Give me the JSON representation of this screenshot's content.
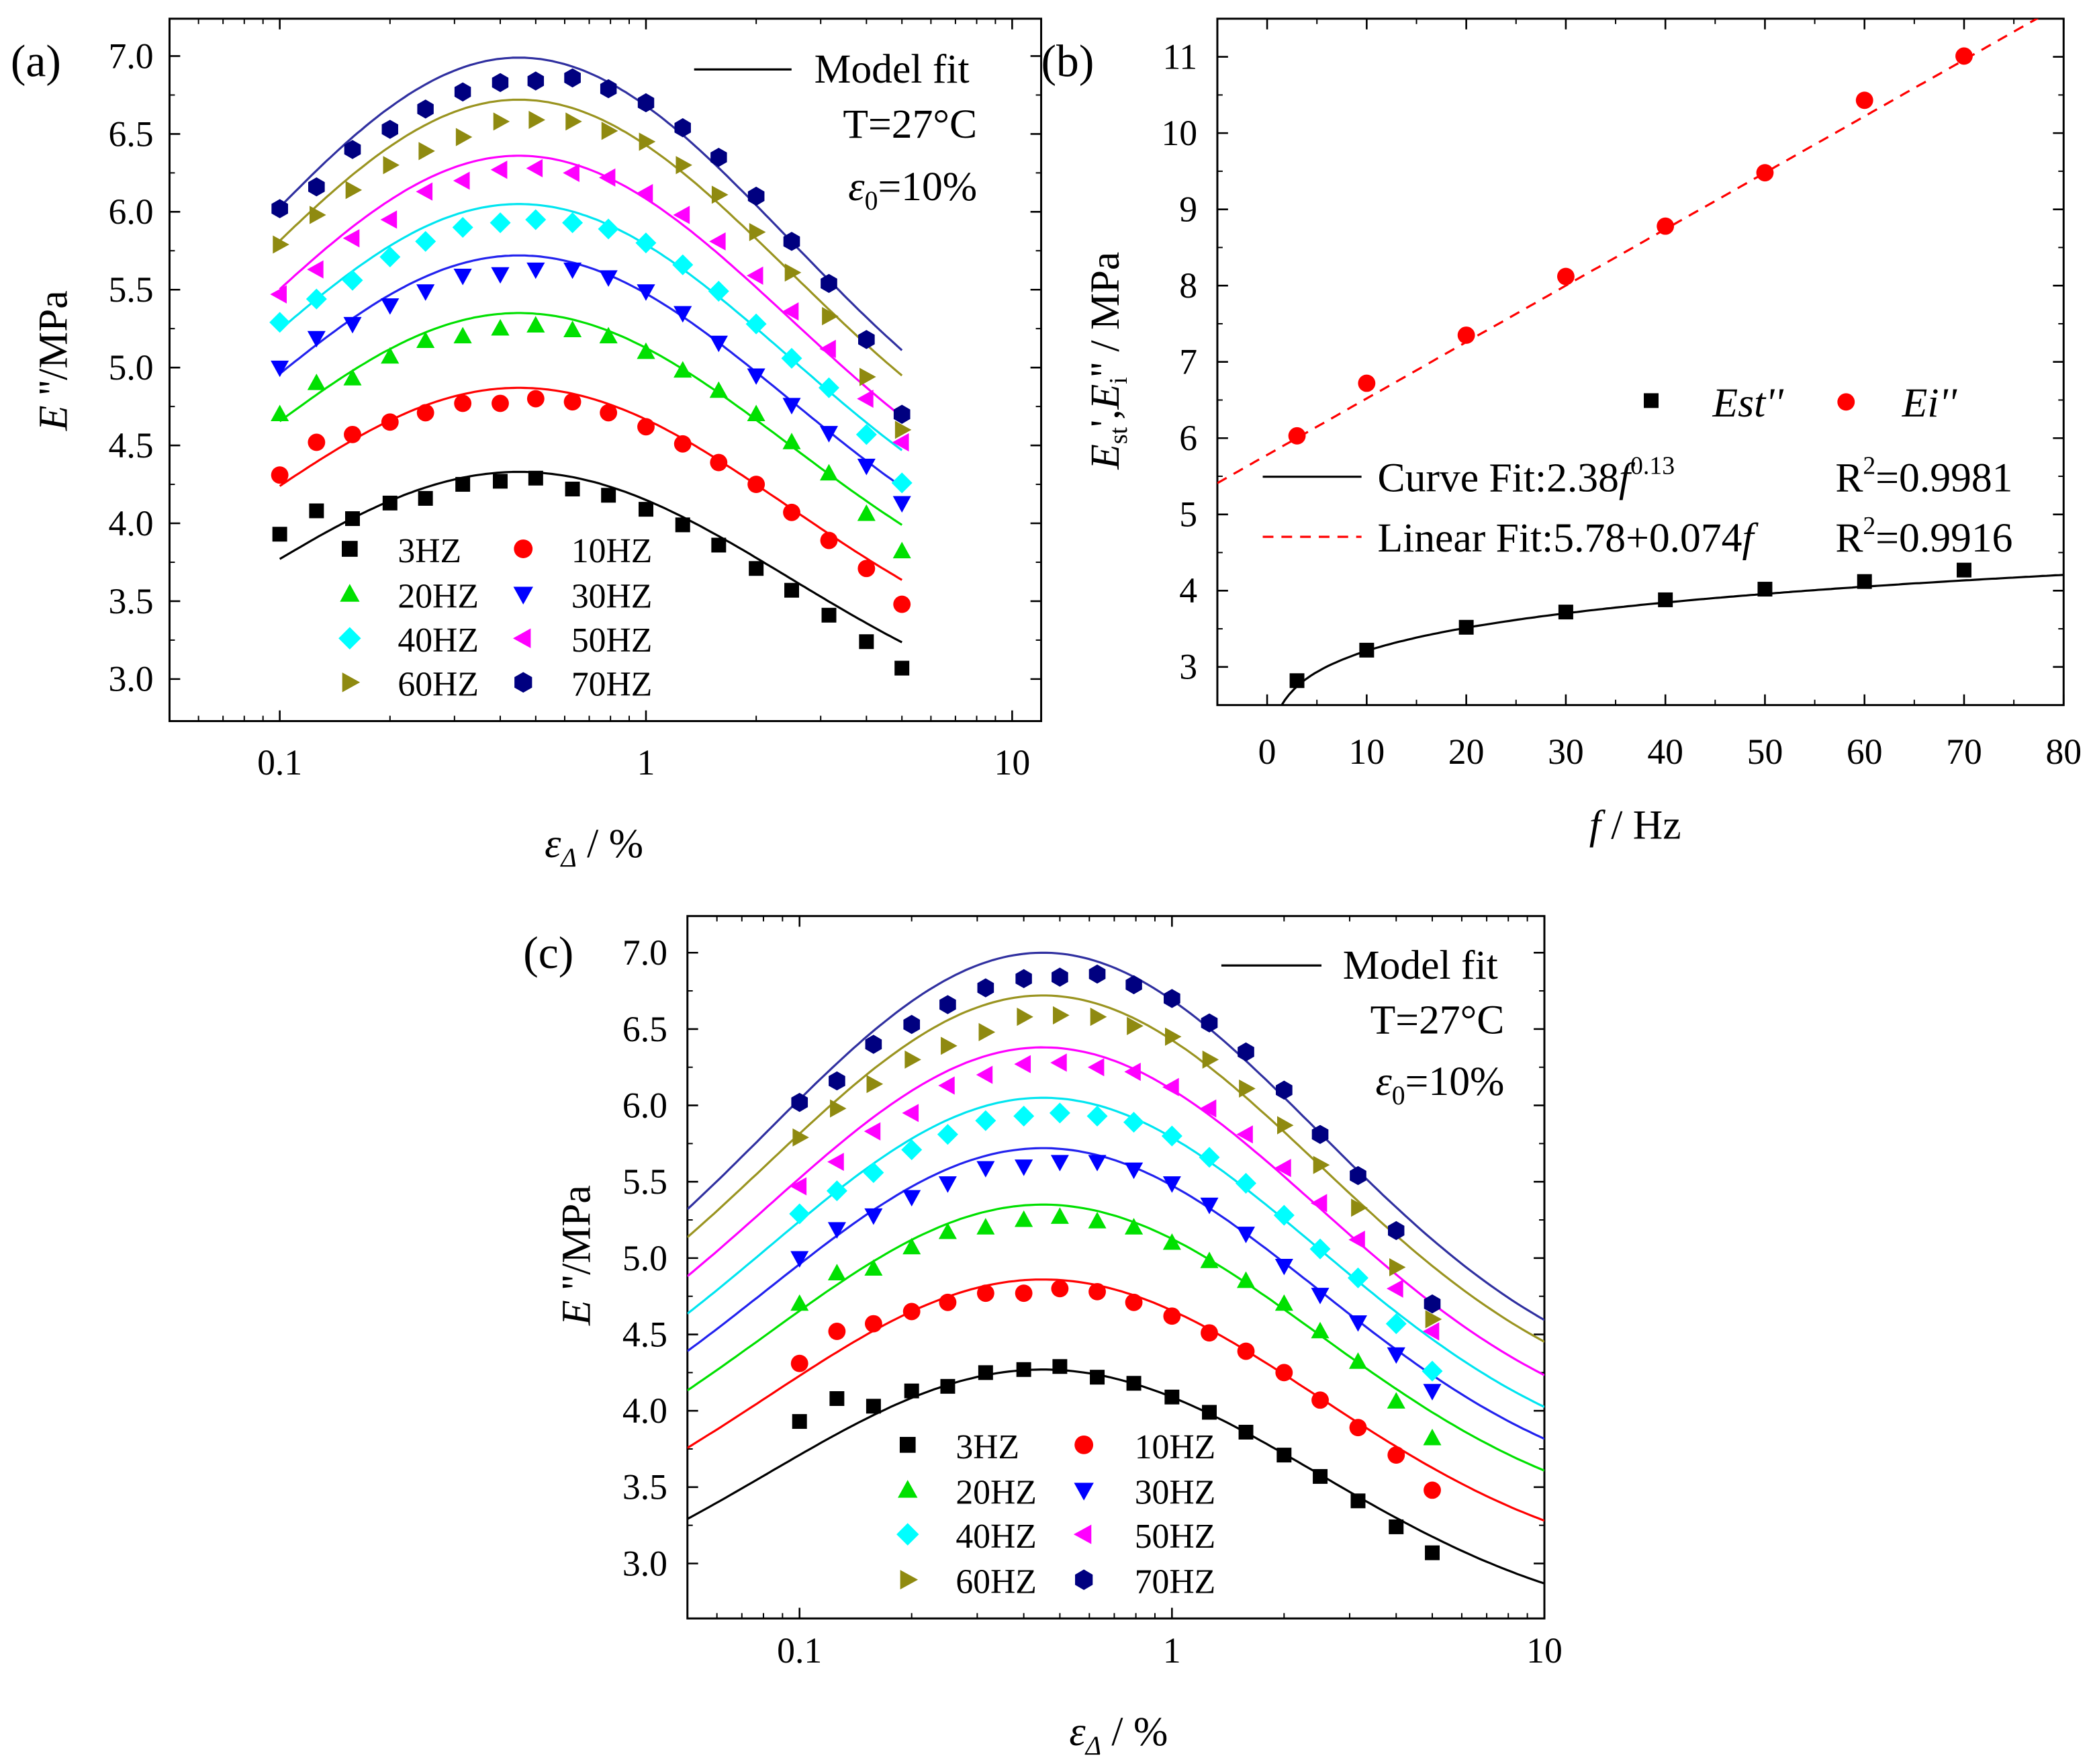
{
  "chart_data": [
    {
      "panel": "(a)",
      "type": "scatter",
      "xscale": "log",
      "xlim": [
        0.05,
        12
      ],
      "ylim": [
        2.73,
        7.24
      ],
      "xticks": [
        0.1,
        1,
        10
      ],
      "xtick_labels": [
        "0.1",
        "1",
        "10"
      ],
      "yticks": [
        3.0,
        3.5,
        4.0,
        4.5,
        5.0,
        5.5,
        6.0,
        6.5,
        7.0
      ],
      "ytick_labels": [
        "3.0",
        "3.5",
        "4.0",
        "4.5",
        "5.0",
        "5.5",
        "6.0",
        "6.5",
        "7.0"
      ],
      "xlabel": {
        "main": "ε",
        "sub": "Δ",
        "rest": " / %"
      },
      "ylabel": {
        "main": "E",
        "rest": " ''/MPa"
      },
      "annotations": {
        "model_fit": "Model fit",
        "temperature": "T=27°C",
        "strain_main": "ε",
        "strain_sub": "0",
        "strain_rest": "=10%"
      },
      "fit": {
        "model": "log-gaussian",
        "center": 0.45,
        "width": 0.739,
        "x_range": [
          0.1,
          5
        ]
      },
      "x": [
        0.1,
        0.126,
        0.158,
        0.2,
        0.25,
        0.316,
        0.4,
        0.5,
        0.63,
        0.79,
        1,
        1.26,
        1.58,
        2,
        2.5,
        3.16,
        4,
        5
      ],
      "series": [
        {
          "name": "3HZ",
          "color": "#000000",
          "line_color": "#000000",
          "marker": "square",
          "fit_peak": 4.33,
          "fit_drop": 1.73,
          "values": [
            3.93,
            4.08,
            4.03,
            4.13,
            4.16,
            4.25,
            4.27,
            4.29,
            4.22,
            4.18,
            4.09,
            3.99,
            3.86,
            3.71,
            3.57,
            3.41,
            3.24,
            3.07
          ]
        },
        {
          "name": "10HZ",
          "color": "#ff0000",
          "line_color": "#ff0000",
          "marker": "circle",
          "fit_peak": 4.87,
          "fit_drop": 1.95,
          "values": [
            4.31,
            4.52,
            4.57,
            4.65,
            4.71,
            4.77,
            4.77,
            4.8,
            4.78,
            4.71,
            4.62,
            4.51,
            4.39,
            4.25,
            4.07,
            3.89,
            3.71,
            3.48
          ]
        },
        {
          "name": "20HZ",
          "color": "#00e000",
          "line_color": "#00e000",
          "marker": "triangle-up",
          "fit_peak": 5.35,
          "fit_drop": 2.15,
          "values": [
            4.7,
            4.9,
            4.93,
            5.07,
            5.17,
            5.2,
            5.25,
            5.27,
            5.24,
            5.2,
            5.1,
            4.98,
            4.85,
            4.7,
            4.52,
            4.32,
            4.06,
            3.82
          ]
        },
        {
          "name": "30HZ",
          "color": "#0000ff",
          "line_color": "#2222ee",
          "marker": "triangle-down",
          "fit_peak": 5.72,
          "fit_drop": 2.35,
          "values": [
            5.0,
            5.19,
            5.28,
            5.4,
            5.49,
            5.59,
            5.6,
            5.63,
            5.63,
            5.58,
            5.49,
            5.35,
            5.16,
            4.95,
            4.76,
            4.58,
            4.37,
            4.13
          ]
        },
        {
          "name": "40HZ",
          "color": "#00ffff",
          "line_color": "#00e5f0",
          "marker": "diamond",
          "fit_peak": 6.05,
          "fit_drop": 2.5,
          "values": [
            5.29,
            5.44,
            5.56,
            5.71,
            5.81,
            5.9,
            5.93,
            5.95,
            5.93,
            5.89,
            5.8,
            5.66,
            5.49,
            5.28,
            5.06,
            4.87,
            4.57,
            4.26
          ]
        },
        {
          "name": "50HZ",
          "color": "#ff00ff",
          "line_color": "#ff00ff",
          "marker": "triangle-left",
          "fit_peak": 6.36,
          "fit_drop": 2.65,
          "values": [
            5.47,
            5.63,
            5.83,
            5.95,
            6.13,
            6.2,
            6.27,
            6.28,
            6.25,
            6.22,
            6.12,
            5.98,
            5.81,
            5.59,
            5.36,
            5.12,
            4.8,
            4.52
          ]
        },
        {
          "name": "60HZ",
          "color": "#8f8a10",
          "line_color": "#9a9420",
          "marker": "triangle-right",
          "fit_peak": 6.72,
          "fit_drop": 2.8,
          "values": [
            5.79,
            5.98,
            6.14,
            6.3,
            6.39,
            6.48,
            6.58,
            6.59,
            6.58,
            6.52,
            6.45,
            6.3,
            6.11,
            5.87,
            5.61,
            5.33,
            4.94,
            4.6
          ]
        },
        {
          "name": "70HZ",
          "color": "#000080",
          "line_color": "#3030a0",
          "marker": "hexagon",
          "fit_peak": 6.99,
          "fit_drop": 2.97,
          "values": [
            6.02,
            6.16,
            6.4,
            6.53,
            6.66,
            6.77,
            6.83,
            6.84,
            6.86,
            6.79,
            6.7,
            6.54,
            6.35,
            6.1,
            5.81,
            5.54,
            5.18,
            4.7
          ]
        }
      ]
    },
    {
      "panel": "(b)",
      "type": "scatter",
      "xlim": [
        -5,
        80
      ],
      "ylim": [
        2.5,
        11.5
      ],
      "xticks": [
        0,
        10,
        20,
        30,
        40,
        50,
        60,
        70,
        80
      ],
      "xtick_labels": [
        "0",
        "10",
        "20",
        "30",
        "40",
        "50",
        "60",
        "70",
        "80"
      ],
      "yticks": [
        3,
        4,
        5,
        6,
        7,
        8,
        9,
        10,
        11
      ],
      "ytick_labels": [
        "3",
        "4",
        "5",
        "6",
        "7",
        "8",
        "9",
        "10",
        "11"
      ],
      "xlabel": {
        "main": "f",
        "rest": " / Hz"
      },
      "ylabel": {
        "e1": "E",
        "s1": "st",
        "mid": "',",
        "e2": "E",
        "s2": "i",
        "rest": "'' / MPa"
      },
      "series": [
        {
          "name": "Est''",
          "color": "#000000",
          "marker": "square",
          "x": [
            3,
            10,
            20,
            30,
            40,
            50,
            60,
            70
          ],
          "values": [
            2.82,
            3.22,
            3.52,
            3.72,
            3.88,
            4.02,
            4.12,
            4.27
          ]
        },
        {
          "name": "Ei''",
          "color": "#ff0000",
          "marker": "circle",
          "x": [
            3,
            10,
            20,
            30,
            40,
            50,
            60,
            70
          ],
          "values": [
            6.03,
            6.72,
            7.35,
            8.12,
            8.78,
            9.48,
            10.43,
            11.01
          ]
        }
      ],
      "fits": [
        {
          "label": "Curve Fit:2.38",
          "var": "f",
          "sup": "0.13",
          "r2_label": "R",
          "r2_sup": "2",
          "r2_value": "=0.9981",
          "a": 2.38,
          "b": 0.13,
          "kind": "power",
          "color": "#000000",
          "style": "solid"
        },
        {
          "label": "Linear Fit:5.78+0.074",
          "var": "f",
          "r2_label": "R",
          "r2_sup": "2",
          "r2_value": "=0.9916",
          "a": 5.78,
          "b": 0.074,
          "kind": "linear",
          "color": "#ff0000",
          "style": "dashed"
        }
      ]
    },
    {
      "panel": "(c)",
      "type": "scatter",
      "xscale": "log",
      "xlim": [
        0.05,
        10
      ],
      "ylim": [
        2.64,
        7.24
      ],
      "xticks": [
        0.1,
        1,
        10
      ],
      "xtick_labels": [
        "0.1",
        "1",
        "10"
      ],
      "yticks": [
        3.0,
        3.5,
        4.0,
        4.5,
        5.0,
        5.5,
        6.0,
        6.5,
        7.0
      ],
      "ytick_labels": [
        "3.0",
        "3.5",
        "4.0",
        "4.5",
        "5.0",
        "5.5",
        "6.0",
        "6.5",
        "7.0"
      ],
      "xlabel": {
        "main": "ε",
        "sub": "Δ",
        "rest": " / %"
      },
      "ylabel": {
        "main": "E",
        "rest": " ''/MPa"
      },
      "annotations": {
        "model_fit": "Model fit",
        "temperature": "T=27°C",
        "strain_main": "ε",
        "strain_sub": "0",
        "strain_rest": "=10%"
      },
      "fit": {
        "model": "log-gaussian",
        "center": 0.45,
        "width": 0.739,
        "x_range": [
          0.05,
          10
        ]
      },
      "x": [
        0.1,
        0.126,
        0.158,
        0.2,
        0.25,
        0.316,
        0.4,
        0.5,
        0.63,
        0.79,
        1,
        1.26,
        1.58,
        2,
        2.5,
        3.16,
        4,
        5
      ],
      "series": [
        {
          "name": "3HZ",
          "color": "#000000",
          "line_color": "#000000",
          "marker": "square",
          "fit_peak": 4.27,
          "fit_drop": 1.73,
          "values": [
            3.93,
            4.08,
            4.03,
            4.13,
            4.16,
            4.25,
            4.27,
            4.29,
            4.22,
            4.18,
            4.09,
            3.99,
            3.86,
            3.71,
            3.57,
            3.41,
            3.24,
            3.07
          ]
        },
        {
          "name": "10HZ",
          "color": "#ff0000",
          "line_color": "#ff0000",
          "marker": "circle",
          "fit_peak": 4.86,
          "fit_drop": 1.95,
          "values": [
            4.31,
            4.52,
            4.57,
            4.65,
            4.71,
            4.77,
            4.77,
            4.8,
            4.78,
            4.71,
            4.62,
            4.51,
            4.39,
            4.25,
            4.07,
            3.89,
            3.71,
            3.48
          ]
        },
        {
          "name": "20HZ",
          "color": "#00e000",
          "line_color": "#00e000",
          "marker": "triangle-up",
          "fit_peak": 5.35,
          "fit_drop": 2.15,
          "values": [
            4.7,
            4.9,
            4.93,
            5.07,
            5.17,
            5.2,
            5.25,
            5.27,
            5.24,
            5.2,
            5.1,
            4.98,
            4.85,
            4.7,
            4.52,
            4.32,
            4.06,
            3.82
          ]
        },
        {
          "name": "30HZ",
          "color": "#0000ff",
          "line_color": "#2222ee",
          "marker": "triangle-down",
          "fit_peak": 5.72,
          "fit_drop": 2.35,
          "values": [
            5.0,
            5.19,
            5.28,
            5.4,
            5.49,
            5.59,
            5.6,
            5.63,
            5.63,
            5.58,
            5.49,
            5.35,
            5.16,
            4.95,
            4.76,
            4.58,
            4.37,
            4.13
          ]
        },
        {
          "name": "40HZ",
          "color": "#00ffff",
          "line_color": "#00e5f0",
          "marker": "diamond",
          "fit_peak": 6.05,
          "fit_drop": 2.5,
          "values": [
            5.29,
            5.44,
            5.56,
            5.71,
            5.81,
            5.9,
            5.93,
            5.95,
            5.93,
            5.89,
            5.8,
            5.66,
            5.49,
            5.28,
            5.06,
            4.87,
            4.57,
            4.26
          ]
        },
        {
          "name": "50HZ",
          "color": "#ff00ff",
          "line_color": "#ff00ff",
          "marker": "triangle-left",
          "fit_peak": 6.38,
          "fit_drop": 2.65,
          "values": [
            5.47,
            5.63,
            5.83,
            5.95,
            6.13,
            6.2,
            6.27,
            6.28,
            6.25,
            6.22,
            6.12,
            5.98,
            5.81,
            5.59,
            5.36,
            5.12,
            4.8,
            4.52
          ]
        },
        {
          "name": "60HZ",
          "color": "#8f8a10",
          "line_color": "#9a9420",
          "marker": "triangle-right",
          "fit_peak": 6.72,
          "fit_drop": 2.8,
          "values": [
            5.79,
            5.98,
            6.14,
            6.3,
            6.39,
            6.48,
            6.58,
            6.59,
            6.58,
            6.52,
            6.45,
            6.3,
            6.11,
            5.87,
            5.61,
            5.33,
            4.94,
            4.6
          ]
        },
        {
          "name": "70HZ",
          "color": "#000080",
          "line_color": "#3030a0",
          "marker": "hexagon",
          "fit_peak": 7.0,
          "fit_drop": 2.97,
          "values": [
            6.02,
            6.16,
            6.4,
            6.53,
            6.66,
            6.77,
            6.83,
            6.84,
            6.86,
            6.79,
            6.7,
            6.54,
            6.35,
            6.1,
            5.81,
            5.54,
            5.18,
            4.7
          ]
        }
      ]
    }
  ]
}
